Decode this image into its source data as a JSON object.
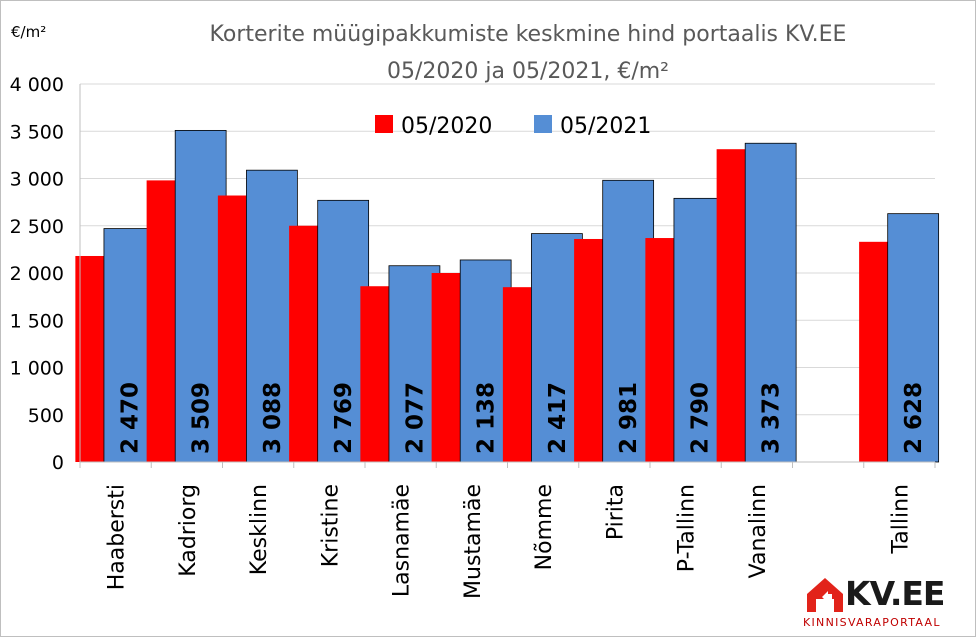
{
  "chart_data": {
    "type": "bar",
    "title_lines": [
      "Korterite müügipakkumiste keskmine hind portaalis KV.EE",
      "05/2020 ja 05/2021, €/m²"
    ],
    "ylabel": "€/m²",
    "ylim": [
      0,
      4000
    ],
    "yticks": [
      0,
      500,
      1000,
      1500,
      2000,
      2500,
      3000,
      3500,
      4000
    ],
    "ytick_labels": [
      "0",
      "500",
      "1 000",
      "1 500",
      "2 000",
      "2 500",
      "3 000",
      "3 500",
      "4 000"
    ],
    "categories": [
      "Haabersti",
      "Kadriorg",
      "Kesklinn",
      "Kristine",
      "Lasnamäe",
      "Mustamäe",
      "Nõmme",
      "Pirita",
      "P-Tallinn",
      "Vanalinn",
      "",
      "Tallinn"
    ],
    "series": [
      {
        "name": "05/2020",
        "color": "#ff0000",
        "values": [
          2180,
          2980,
          2820,
          2500,
          1860,
          2000,
          1850,
          2360,
          2370,
          3310,
          null,
          2330
        ]
      },
      {
        "name": "05/2021",
        "color": "#558ed5",
        "values": [
          2470,
          3509,
          3088,
          2769,
          2077,
          2138,
          2417,
          2981,
          2790,
          3373,
          null,
          2628
        ]
      }
    ],
    "data_labels": [
      "2 470",
      "3 509",
      "3 088",
      "2 769",
      "2 077",
      "2 138",
      "2 417",
      "2 981",
      "2 790",
      "3 373",
      "",
      "2 628"
    ],
    "grid": true,
    "legend_position": "top-center"
  },
  "logo": {
    "brand": "KV.EE",
    "subtitle": "KINNISVARAPORTAAL",
    "colors": {
      "house": "#e2231a",
      "text": "#1a1a1a",
      "subtitle": "#c00000"
    }
  }
}
